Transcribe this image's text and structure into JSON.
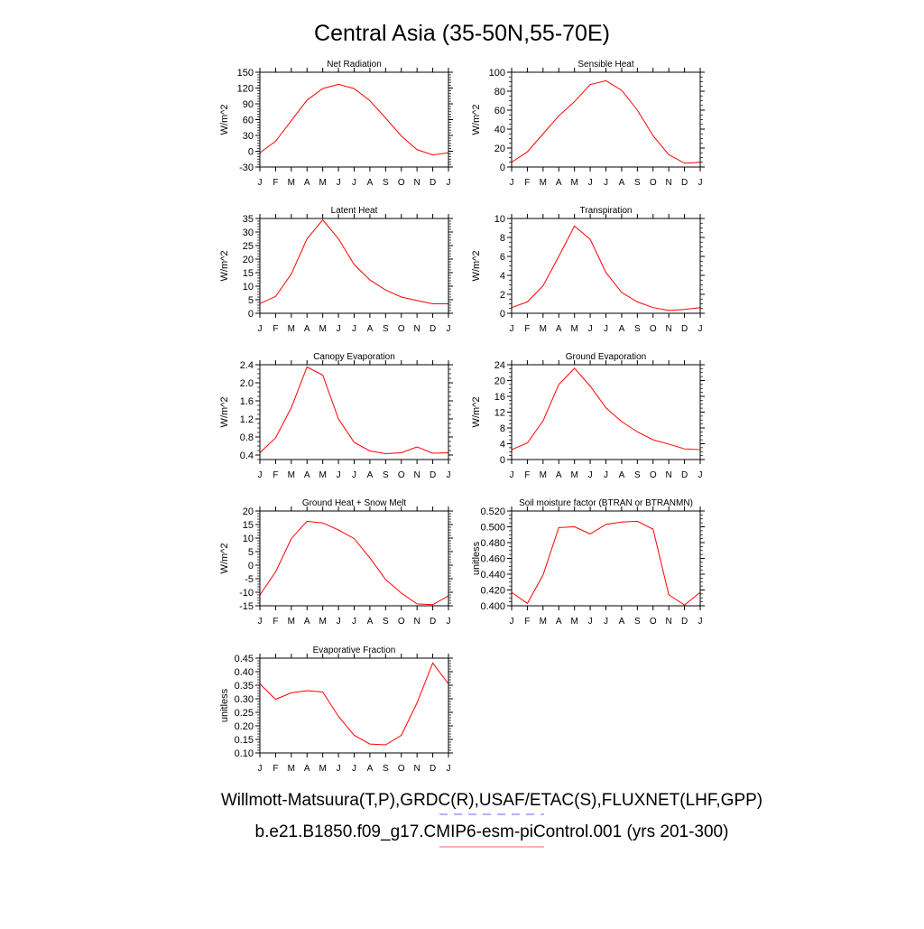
{
  "title": "Central Asia (35-50N,55-70E)",
  "footer": {
    "line1": "Willmott-Matsuura(T,P),GRDC(R),USAF/ETAC(S),FLUXNET(LHF,GPP)",
    "line2": "b.e21.B1850.f09_g17.CMIP6-esm-piControl.001 (yrs 201-300)"
  },
  "colors": {
    "model": "#ff0000",
    "obs": "#0000ff"
  },
  "chart_data": [
    {
      "type": "line",
      "title": "Net Radiation",
      "ylabel": "W/m^2",
      "ylim": [
        -30,
        150
      ],
      "yticks": [
        "-30",
        "0",
        "30",
        "60",
        "90",
        "120",
        "150"
      ],
      "minor": 6,
      "categories": [
        "J",
        "F",
        "M",
        "A",
        "M",
        "J",
        "J",
        "A",
        "S",
        "O",
        "N",
        "D",
        "J"
      ],
      "values": [
        -3,
        19,
        58,
        97,
        119,
        127,
        119,
        96,
        63,
        29,
        3,
        -7,
        -3
      ]
    },
    {
      "type": "line",
      "title": "Sensible Heat",
      "ylabel": "W/m^2",
      "ylim": [
        0,
        100
      ],
      "yticks": [
        "0",
        "20",
        "40",
        "60",
        "80",
        "100"
      ],
      "minor": 4,
      "categories": [
        "J",
        "F",
        "M",
        "A",
        "M",
        "J",
        "J",
        "A",
        "S",
        "O",
        "N",
        "D",
        "J"
      ],
      "values": [
        5,
        16,
        35,
        54,
        69,
        87,
        91,
        81,
        60,
        33,
        13,
        4,
        5
      ]
    },
    {
      "type": "line",
      "title": "Latent Heat",
      "ylabel": "W/m^2",
      "ylim": [
        0,
        35
      ],
      "yticks": [
        "0",
        "5",
        "10",
        "15",
        "20",
        "25",
        "30",
        "35"
      ],
      "minor": 5,
      "categories": [
        "J",
        "F",
        "M",
        "A",
        "M",
        "J",
        "J",
        "A",
        "S",
        "O",
        "N",
        "D",
        "J"
      ],
      "values": [
        3.6,
        6.2,
        14.5,
        27.5,
        34.5,
        27.5,
        18,
        12.3,
        8.6,
        6,
        4.7,
        3.5,
        3.5
      ]
    },
    {
      "type": "line",
      "title": "Transpiration",
      "ylabel": "W/m^2",
      "ylim": [
        0,
        10
      ],
      "yticks": [
        "0",
        "2",
        "4",
        "6",
        "8",
        "10"
      ],
      "minor": 4,
      "categories": [
        "J",
        "F",
        "M",
        "A",
        "M",
        "J",
        "J",
        "A",
        "S",
        "O",
        "N",
        "D",
        "J"
      ],
      "values": [
        0.6,
        1.2,
        2.9,
        6.0,
        9.2,
        7.8,
        4.3,
        2.2,
        1.2,
        0.6,
        0.3,
        0.4,
        0.6
      ]
    },
    {
      "type": "line",
      "title": "Canopy Evaporation",
      "ylabel": "W/m^2",
      "ylim": [
        0.3,
        2.4
      ],
      "yticks": [
        "0.4",
        "0.8",
        "1.2",
        "1.6",
        "2.0",
        "2.4"
      ],
      "tickvals": [
        0.4,
        0.8,
        1.2,
        1.6,
        2.0,
        2.4
      ],
      "minor": 4,
      "categories": [
        "J",
        "F",
        "M",
        "A",
        "M",
        "J",
        "J",
        "A",
        "S",
        "O",
        "N",
        "D",
        "J"
      ],
      "values": [
        0.45,
        0.78,
        1.45,
        2.35,
        2.17,
        1.2,
        0.68,
        0.49,
        0.43,
        0.45,
        0.58,
        0.44,
        0.45
      ]
    },
    {
      "type": "line",
      "title": "Ground Evaporation",
      "ylabel": "W/m^2",
      "ylim": [
        0,
        24
      ],
      "yticks": [
        "0",
        "4",
        "8",
        "12",
        "16",
        "20",
        "24"
      ],
      "minor": 4,
      "categories": [
        "J",
        "F",
        "M",
        "A",
        "M",
        "J",
        "J",
        "A",
        "S",
        "O",
        "N",
        "D",
        "J"
      ],
      "values": [
        2.5,
        4.2,
        9.8,
        19,
        23.1,
        18.6,
        13.1,
        9.6,
        7,
        5,
        3.9,
        2.7,
        2.5
      ]
    },
    {
      "type": "line",
      "title": "Ground Heat + Snow Melt",
      "ylabel": "W/m^2",
      "ylim": [
        -15,
        20
      ],
      "yticks": [
        "-15",
        "-10",
        "-5",
        "0",
        "5",
        "10",
        "15",
        "20"
      ],
      "minor": 5,
      "categories": [
        "J",
        "F",
        "M",
        "A",
        "M",
        "J",
        "J",
        "A",
        "S",
        "O",
        "N",
        "D",
        "J"
      ],
      "values": [
        -11,
        -2.5,
        9.8,
        16.2,
        15.6,
        13,
        9.8,
        2.7,
        -5.3,
        -10.3,
        -14.3,
        -14.6,
        -11.3
      ]
    },
    {
      "type": "line",
      "title": "Soil moisture factor (BTRAN or BTRANMN)",
      "ylabel": "unitless",
      "ylim": [
        0.4,
        0.52
      ],
      "yticks": [
        "0.400",
        "0.420",
        "0.440",
        "0.460",
        "0.480",
        "0.500",
        "0.520"
      ],
      "minor": 4,
      "categories": [
        "J",
        "F",
        "M",
        "A",
        "M",
        "J",
        "J",
        "A",
        "S",
        "O",
        "N",
        "D",
        "J"
      ],
      "values": [
        0.417,
        0.403,
        0.439,
        0.499,
        0.5,
        0.491,
        0.503,
        0.506,
        0.507,
        0.497,
        0.414,
        0.401,
        0.417
      ]
    },
    {
      "type": "line",
      "title": "Evaporative Fraction",
      "ylabel": "unitless",
      "ylim": [
        0.1,
        0.45
      ],
      "yticks": [
        "0.10",
        "0.15",
        "0.20",
        "0.25",
        "0.30",
        "0.35",
        "0.40",
        "0.45"
      ],
      "minor": 5,
      "categories": [
        "J",
        "F",
        "M",
        "A",
        "M",
        "J",
        "J",
        "A",
        "S",
        "O",
        "N",
        "D",
        "J"
      ],
      "values": [
        0.355,
        0.298,
        0.322,
        0.33,
        0.325,
        0.235,
        0.165,
        0.133,
        0.13,
        0.165,
        0.285,
        0.432,
        0.355
      ]
    }
  ]
}
